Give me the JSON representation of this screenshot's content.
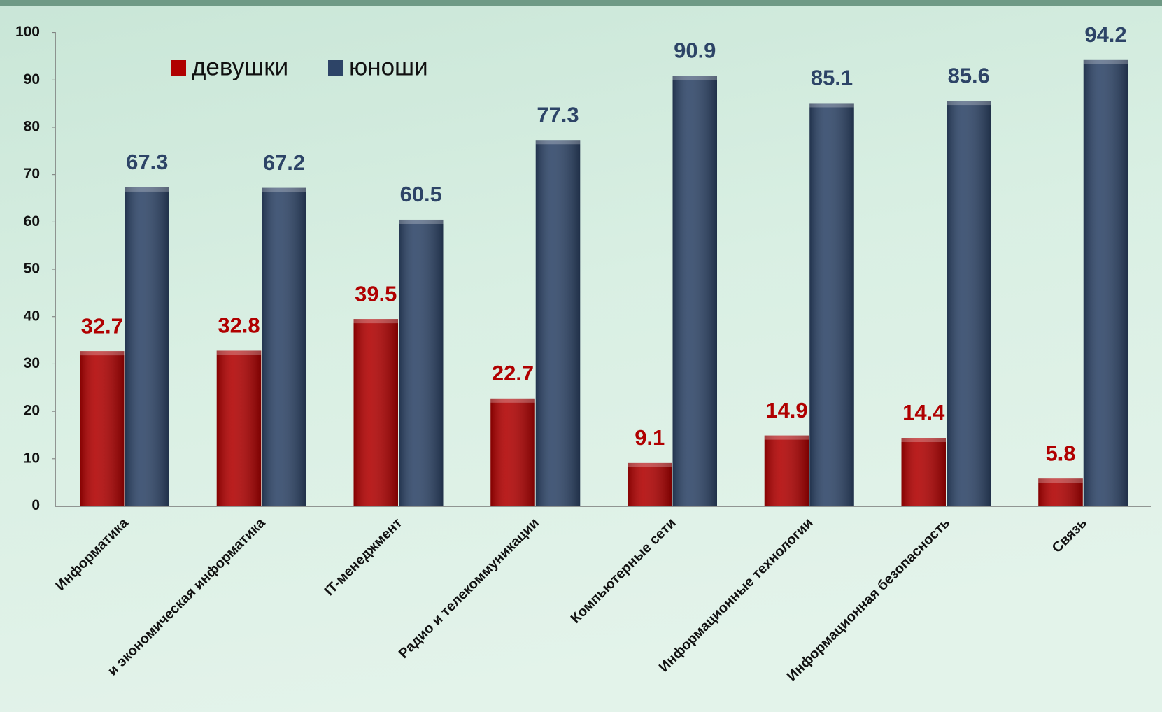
{
  "chart_data": {
    "type": "bar",
    "categories": [
      "Информатика",
      "и экономическая информатика",
      "IT-менеджмент",
      "Радио и телекоммуникации",
      "Компьютерные сети",
      "Информационные технологии",
      "Информационная безопасность",
      "Связь"
    ],
    "series": [
      {
        "name": "девушки",
        "color": "#b00000",
        "values": [
          32.7,
          32.8,
          39.5,
          22.7,
          9.1,
          14.9,
          14.4,
          5.8
        ]
      },
      {
        "name": "юноши",
        "color": "#2d4467",
        "values": [
          67.3,
          67.2,
          60.5,
          77.3,
          90.9,
          85.1,
          85.6,
          94.2
        ]
      }
    ],
    "ylim": [
      0,
      100
    ],
    "yticks": [
      0,
      10,
      20,
      30,
      40,
      50,
      60,
      70,
      80,
      90,
      100
    ],
    "legend": "top-left"
  }
}
